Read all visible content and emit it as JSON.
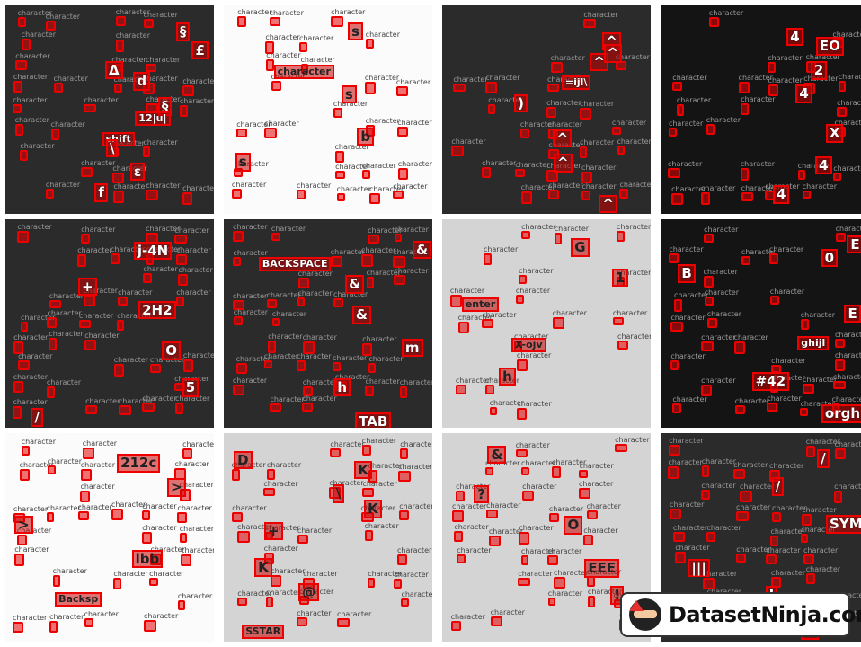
{
  "brand": {
    "name": "DatasetNinja.com",
    "icon": "ninja-logo-icon"
  },
  "annotation_label": "character",
  "tiles": [
    {
      "keys": [
        "§",
        "Δ",
        "§",
        "shift",
        "ε",
        "f",
        "£",
        "d",
        "12|u|",
        "\\"
      ],
      "theme": "dark"
    },
    {
      "keys": [
        "s",
        "character",
        "s",
        "b",
        "s"
      ],
      "theme": "white"
    },
    {
      "keys": [
        "^",
        "^",
        ")",
        "^",
        "^",
        "^",
        "^",
        "=ijl\\"
      ],
      "theme": "dark"
    },
    {
      "keys": [
        "4",
        "2",
        "4",
        "X",
        "4",
        "4",
        "EO"
      ],
      "theme": "darker"
    },
    {
      "keys": [
        "j-4N",
        "+",
        "2H2",
        "O",
        "5",
        "/"
      ],
      "theme": "dark"
    },
    {
      "keys": [
        "&",
        "&",
        "&",
        "m",
        "h",
        "TAB",
        "BACKSPACE"
      ],
      "theme": "dark"
    },
    {
      "keys": [
        "G",
        "1",
        "enter",
        "X-ojv",
        "h"
      ],
      "theme": "light"
    },
    {
      "keys": [
        "E",
        "B",
        "E",
        "ghijl",
        "#42",
        "orgh",
        "0"
      ],
      "theme": "darker"
    },
    {
      "keys": [
        "212c",
        ">",
        ">",
        "lbb",
        "Backsp"
      ],
      "theme": "white"
    },
    {
      "keys": [
        "D",
        "\\",
        "+",
        "K",
        "@",
        "SSTAR",
        "K",
        "K"
      ],
      "theme": "light"
    },
    {
      "keys": [
        "&",
        "?",
        "O",
        "EEE",
        "!"
      ],
      "theme": "light"
    },
    {
      "keys": [
        "/",
        "/",
        "SYM",
        "|||",
        "J",
        "G"
      ],
      "theme": "dark"
    }
  ]
}
